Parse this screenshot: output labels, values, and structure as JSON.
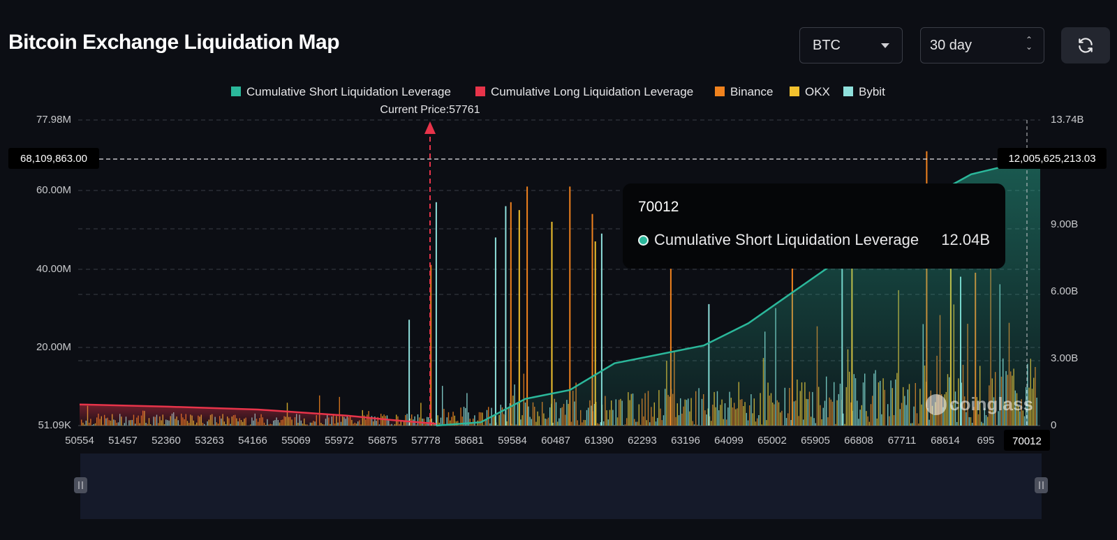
{
  "header": {
    "title": "Bitcoin Exchange Liquidation Map",
    "coin_select": "BTC",
    "range_select": "30 day",
    "refresh_icon": "refresh-icon"
  },
  "tooltip": {
    "title": "70012",
    "series": "Cumulative Short Liquidation Leverage",
    "value": "12.04B"
  },
  "watermark": "coinglass",
  "colors": {
    "short": "#2bb89b",
    "long": "#e8344a",
    "binance": "#f0821e",
    "okx": "#f2c12e",
    "bybit": "#8fe0dc"
  },
  "chart_data": {
    "type": "bar",
    "legend": [
      "Cumulative Short Liquidation Leverage",
      "Cumulative Long Liquidation Leverage",
      "Binance",
      "OKX",
      "Bybit"
    ],
    "legend_position": "top-center",
    "current_price_label": "Current Price:57761",
    "current_price": 57761,
    "x_ticks": [
      "50554",
      "51457",
      "52360",
      "53263",
      "54166",
      "55069",
      "55972",
      "56875",
      "57778",
      "58681",
      "59584",
      "60487",
      "61390",
      "62293",
      "63196",
      "64099",
      "65002",
      "65905",
      "66808",
      "67711",
      "68614",
      "695"
    ],
    "x_range": [
      50554,
      70012
    ],
    "x_cursor_label": "70012",
    "y_left_ticks": [
      "77.98M",
      "60.00M",
      "40.00M",
      "20.00M",
      "51.09K"
    ],
    "y_left_range": [
      51090,
      77980000
    ],
    "y_right_ticks": [
      "13.74B",
      "9.00B",
      "6.00B",
      "3.00B",
      "0"
    ],
    "y_right_range": [
      0,
      13740000000
    ],
    "crosshair_left_label": "68,109,863.00",
    "crosshair_right_label": "12,005,625,213.03",
    "long_cumulative": {
      "name": "Cumulative Long Liquidation Leverage",
      "x": [
        50554,
        52360,
        54166,
        55972,
        56875,
        57778
      ],
      "y": [
        0.95,
        0.85,
        0.72,
        0.45,
        0.25,
        0.08
      ]
    },
    "short_cumulative": {
      "name": "Cumulative Short Liquidation Leverage",
      "x": [
        57778,
        58681,
        59584,
        60487,
        61390,
        62293,
        63196,
        64099,
        65002,
        65905,
        66808,
        67711,
        68614,
        70012
      ],
      "y": [
        0.0,
        0.15,
        1.2,
        1.6,
        2.8,
        3.2,
        3.6,
        4.6,
        6.0,
        7.4,
        8.6,
        10.2,
        11.3,
        12.04
      ]
    },
    "spikes": {
      "binance": [
        [
          57670,
          41
        ],
        [
          59290,
          57
        ],
        [
          59620,
          61
        ],
        [
          60485,
          61
        ],
        [
          60940,
          54
        ],
        [
          62530,
          40
        ],
        [
          64990,
          46
        ],
        [
          67712,
          70
        ],
        [
          68700,
          39
        ]
      ],
      "okx": [
        [
          59460,
          55
        ],
        [
          60120,
          52
        ],
        [
          61000,
          47
        ],
        [
          66200,
          44
        ],
        [
          68200,
          40
        ]
      ],
      "bybit": [
        [
          57778,
          57
        ],
        [
          57230,
          27
        ],
        [
          59185,
          56
        ],
        [
          58980,
          48
        ],
        [
          61130,
          49
        ],
        [
          63300,
          31
        ],
        [
          66000,
          40
        ],
        [
          68400,
          38
        ]
      ]
    }
  }
}
